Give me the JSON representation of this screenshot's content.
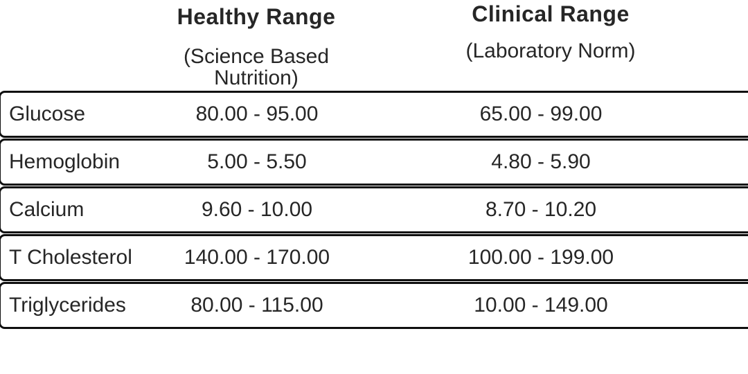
{
  "colors": {
    "background": "#ffffff",
    "text": "#262626",
    "row_border": "#0f0f0f"
  },
  "chart_data": {
    "type": "table",
    "title": "",
    "columns": {
      "parameter": "",
      "healthy": {
        "title": "Healthy Range",
        "subtitle": "(Science Based Nutrition)"
      },
      "clinical": {
        "title": "Clinical Range",
        "subtitle": "(Laboratory Norm)"
      }
    },
    "rows": [
      {
        "parameter": "Glucose",
        "healthy": "80.00 - 95.00",
        "clinical": "65.00 - 99.00"
      },
      {
        "parameter": "Hemoglobin",
        "healthy": "5.00 - 5.50",
        "clinical": "4.80 - 5.90"
      },
      {
        "parameter": "Calcium",
        "healthy": "9.60 - 10.00",
        "clinical": "8.70 - 10.20"
      },
      {
        "parameter": "T Cholesterol",
        "healthy": "140.00 - 170.00",
        "clinical": "100.00 - 199.00"
      },
      {
        "parameter": "Triglycerides",
        "healthy": "80.00 - 115.00",
        "clinical": "10.00 - 149.00"
      }
    ],
    "rows_numeric": [
      {
        "parameter": "Glucose",
        "healthy_min": 80,
        "healthy_max": 95,
        "clinical_min": 65,
        "clinical_max": 99
      },
      {
        "parameter": "Hemoglobin",
        "healthy_min": 5,
        "healthy_max": 5.5,
        "clinical_min": 4.8,
        "clinical_max": 5.9
      },
      {
        "parameter": "Calcium",
        "healthy_min": 9.6,
        "healthy_max": 10,
        "clinical_min": 8.7,
        "clinical_max": 10.2
      },
      {
        "parameter": "T Cholesterol",
        "healthy_min": 140,
        "healthy_max": 170,
        "clinical_min": 100,
        "clinical_max": 199
      },
      {
        "parameter": "Triglycerides",
        "healthy_min": 80,
        "healthy_max": 115,
        "clinical_min": 10,
        "clinical_max": 149
      }
    ]
  }
}
